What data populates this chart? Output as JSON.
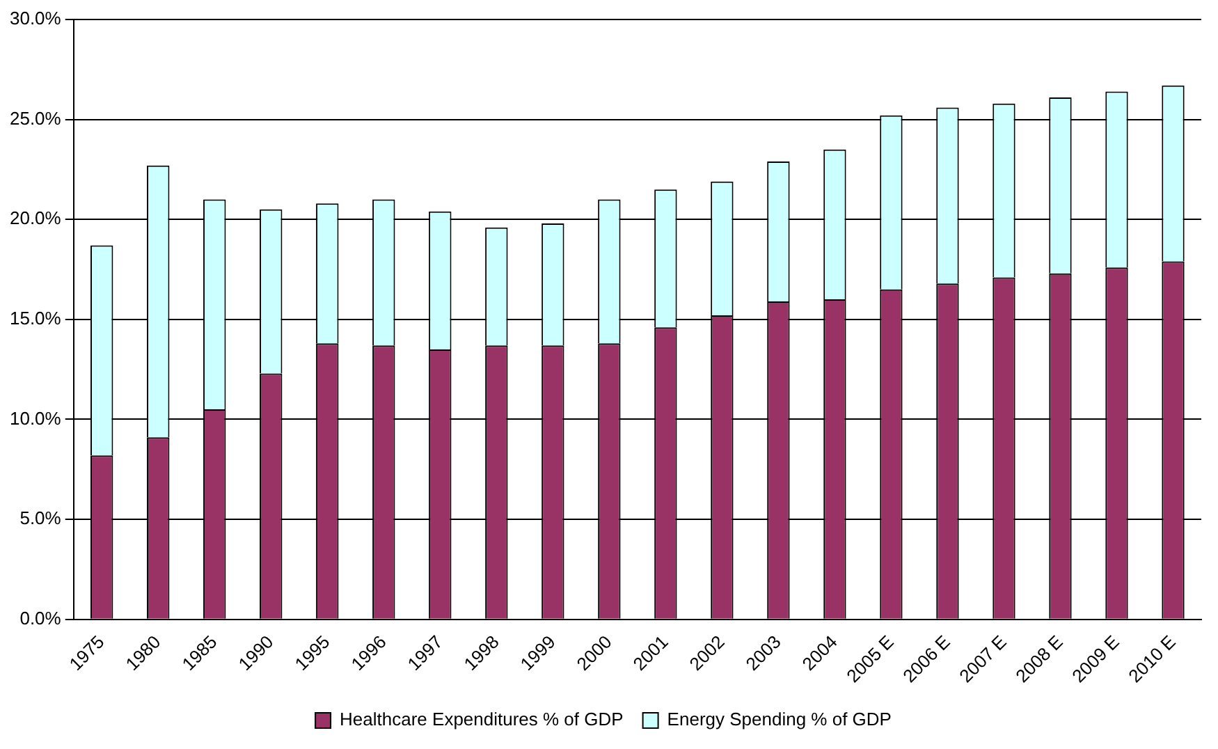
{
  "chart_data": {
    "type": "bar",
    "stacked": true,
    "categories": [
      "1975",
      "1980",
      "1985",
      "1990",
      "1995",
      "1996",
      "1997",
      "1998",
      "1999",
      "2000",
      "2001",
      "2002",
      "2003",
      "2004",
      "2005 E",
      "2006 E",
      "2007 E",
      "2008 E",
      "2009 E",
      "2010 E"
    ],
    "series": [
      {
        "name": "Healthcare Expenditures % of GDP",
        "color": "#993366",
        "values": [
          8.2,
          9.1,
          10.5,
          12.3,
          13.8,
          13.7,
          13.5,
          13.7,
          13.7,
          13.8,
          14.6,
          15.2,
          15.9,
          16.0,
          16.5,
          16.8,
          17.1,
          17.3,
          17.6,
          17.9
        ]
      },
      {
        "name": "Energy Spending % of GDP",
        "color": "#ccffff",
        "values": [
          10.5,
          13.6,
          10.5,
          8.2,
          7.0,
          7.3,
          6.9,
          5.9,
          6.1,
          7.2,
          6.9,
          6.7,
          7.0,
          7.5,
          8.7,
          8.8,
          8.7,
          8.8,
          8.8,
          8.8
        ]
      }
    ],
    "ylim": [
      0,
      30
    ],
    "yticks": [
      {
        "value": 0,
        "label": "0.0%"
      },
      {
        "value": 5,
        "label": "5.0%"
      },
      {
        "value": 10,
        "label": "10.0%"
      },
      {
        "value": 15,
        "label": "15.0%"
      },
      {
        "value": 20,
        "label": "20.0%"
      },
      {
        "value": 25,
        "label": "25.0%"
      },
      {
        "value": 30,
        "label": "30.0%"
      }
    ],
    "grid": "y",
    "legend": "bottom"
  }
}
